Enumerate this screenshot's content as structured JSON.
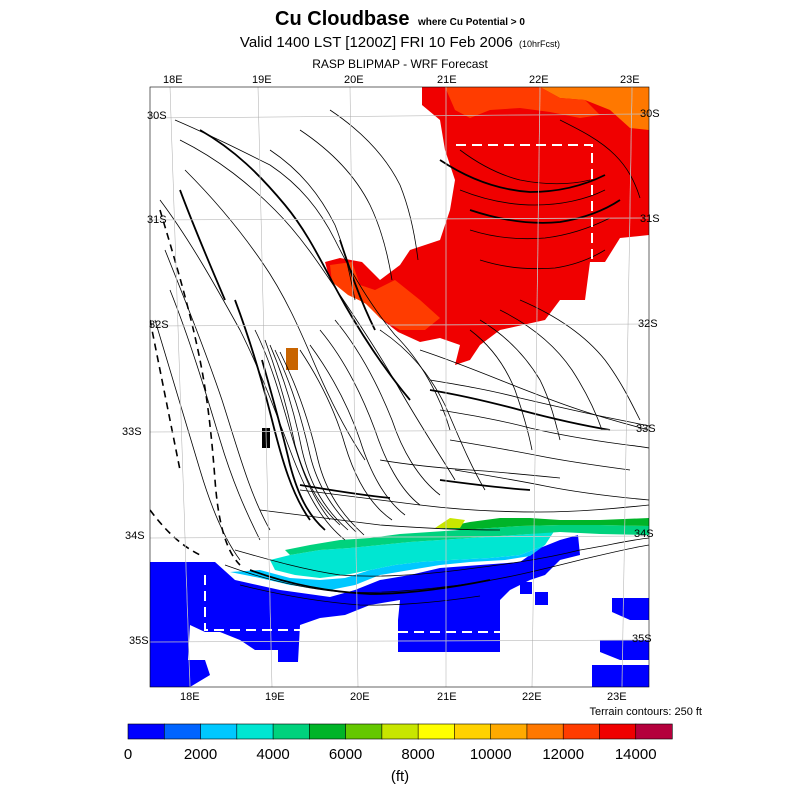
{
  "title": "Cu Cloudbase",
  "title_note": "where Cu Potential > 0",
  "valid_line": "Valid 1400 LST [1200Z] FRI 10 Feb 2006",
  "valid_note": "(10hrFcst)",
  "subtitle": "RASP BLIPMAP - WRF Forecast",
  "terrain_note": "Terrain contours: 250 ft",
  "unit_label": "(ft)",
  "lon_top": [
    "18E",
    "19E",
    "20E",
    "21E",
    "22E",
    "23E"
  ],
  "lon_bottom": [
    "18E",
    "19E",
    "20E",
    "21E",
    "22E",
    "23E"
  ],
  "lat_left": [
    "30S",
    "31S",
    "32S",
    "33S",
    "34S",
    "35S"
  ],
  "lat_right": [
    "30S",
    "31S",
    "32S",
    "33S",
    "34S",
    "35S"
  ],
  "colorbar": {
    "colors": [
      "#0000ff",
      "#0064ff",
      "#00c8ff",
      "#00e6d2",
      "#00d27d",
      "#00b428",
      "#64c800",
      "#c8e600",
      "#ffff00",
      "#ffd200",
      "#ffaa00",
      "#ff7800",
      "#ff3c00",
      "#f00000",
      "#b4003c"
    ],
    "labels": [
      "0",
      "2000",
      "4000",
      "6000",
      "8000",
      "10000",
      "12000",
      "14000"
    ]
  },
  "colors": {
    "red": "#f00000",
    "orange_red": "#ff3c00",
    "orange": "#ff7800",
    "blue": "#0000ff",
    "cyan": "#00c8ff",
    "teal": "#00e6d2",
    "green": "#00d27d",
    "dark_green": "#00b428",
    "lime": "#64c800",
    "yellow_green": "#c8e600"
  }
}
